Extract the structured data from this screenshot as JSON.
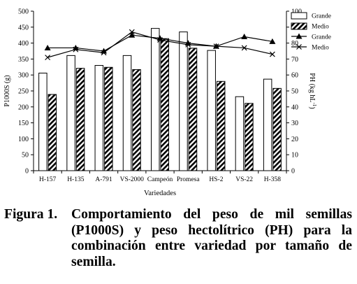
{
  "caption": {
    "label": "Figura 1.",
    "text": "Comportamiento del peso de mil semillas (P1000S) y peso hectolítrico (PH) para la combinación entre variedad por tamaño de semilla."
  },
  "chart_data": {
    "type": "bar",
    "title": "",
    "xlabel": "Variedades",
    "ylabel": "P1000S (g)",
    "y2label_main": "PH (kg hL",
    "y2label_sup": "-1",
    "y2label_end": ")",
    "categories": [
      "H-157",
      "H-135",
      "A-791",
      "VS-2000",
      "Campeón",
      "Promesa",
      "HS-2",
      "VS-22",
      "H-358"
    ],
    "ylim": [
      0,
      500
    ],
    "yticks": [
      0,
      50,
      100,
      150,
      200,
      250,
      300,
      350,
      400,
      450,
      500
    ],
    "y2lim": [
      0,
      100
    ],
    "y2ticks": [
      0,
      10,
      20,
      30,
      40,
      50,
      60,
      70,
      80,
      90,
      100
    ],
    "series": [
      {
        "name": "Grande",
        "kind": "bar",
        "axis": "left",
        "fill": "#ffffff",
        "values": [
          306,
          361,
          330,
          361,
          446,
          435,
          377,
          232,
          287
        ]
      },
      {
        "name": "Medio",
        "kind": "bar",
        "axis": "left",
        "fill": "hatched",
        "values": [
          239,
          321,
          324,
          317,
          414,
          384,
          280,
          211,
          258
        ]
      },
      {
        "name": "Grande",
        "kind": "line",
        "axis": "right",
        "marker": "triangle",
        "values": [
          77,
          77,
          75,
          85,
          83,
          80,
          78,
          84,
          81
        ]
      },
      {
        "name": "Medio",
        "kind": "line",
        "axis": "right",
        "marker": "x",
        "values": [
          71,
          76,
          74,
          87,
          82,
          79,
          78,
          77,
          73
        ]
      }
    ],
    "legend_position": "top-right",
    "grid": false
  }
}
